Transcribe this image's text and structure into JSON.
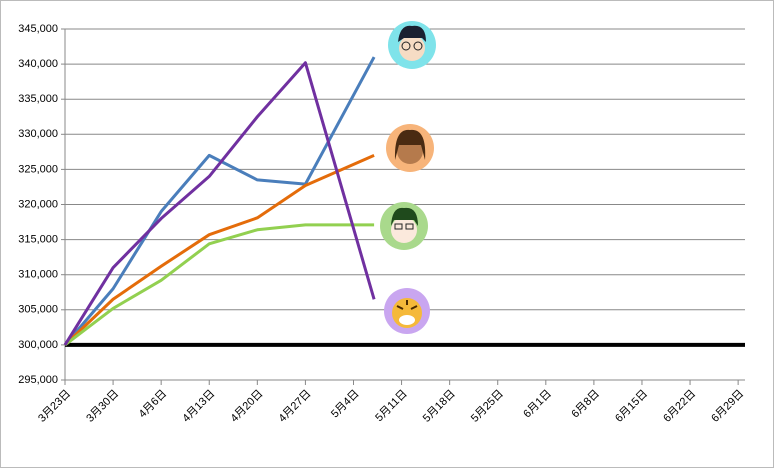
{
  "chart_data": {
    "type": "line",
    "x": [
      0,
      7,
      14,
      21,
      28,
      35,
      45
    ],
    "xlim": [
      0,
      99
    ],
    "xticks": [
      {
        "value": 0,
        "label": "3月23日"
      },
      {
        "value": 7,
        "label": "3月30日"
      },
      {
        "value": 14,
        "label": "4月6日"
      },
      {
        "value": 21,
        "label": "4月13日"
      },
      {
        "value": 28,
        "label": "4月20日"
      },
      {
        "value": 35,
        "label": "4月27日"
      },
      {
        "value": 42,
        "label": "5月4日"
      },
      {
        "value": 49,
        "label": "5月11日"
      },
      {
        "value": 56,
        "label": "5月18日"
      },
      {
        "value": 63,
        "label": "5月25日"
      },
      {
        "value": 70,
        "label": "6月1日"
      },
      {
        "value": 77,
        "label": "6月8日"
      },
      {
        "value": 84,
        "label": "6月15日"
      },
      {
        "value": 91,
        "label": "6月22日"
      },
      {
        "value": 98,
        "label": "6月29日"
      }
    ],
    "ylim": [
      295000,
      345000
    ],
    "yticks": [
      {
        "value": 295000,
        "label": "295,000"
      },
      {
        "value": 300000,
        "label": "300,000"
      },
      {
        "value": 305000,
        "label": "305,000"
      },
      {
        "value": 310000,
        "label": "310,000"
      },
      {
        "value": 315000,
        "label": "315,000"
      },
      {
        "value": 320000,
        "label": "320,000"
      },
      {
        "value": 325000,
        "label": "325,000"
      },
      {
        "value": 330000,
        "label": "330,000"
      },
      {
        "value": 335000,
        "label": "335,000"
      },
      {
        "value": 340000,
        "label": "340,000"
      },
      {
        "value": 345000,
        "label": "345,000"
      }
    ],
    "grid": true,
    "reference_line": 300000,
    "series": [
      {
        "color": "#4a7ebb",
        "values": [
          300000,
          308000,
          319000,
          327000,
          323500,
          322900,
          341000
        ]
      },
      {
        "color": "#e46c0a",
        "values": [
          300000,
          306500,
          311200,
          315700,
          318100,
          322700,
          327000
        ]
      },
      {
        "color": "#92d050",
        "values": [
          300000,
          305200,
          309200,
          314400,
          316400,
          317100,
          317100
        ]
      },
      {
        "color": "#7030a0",
        "values": [
          300000,
          311000,
          318000,
          324000,
          332500,
          340200,
          306500
        ]
      }
    ]
  }
}
